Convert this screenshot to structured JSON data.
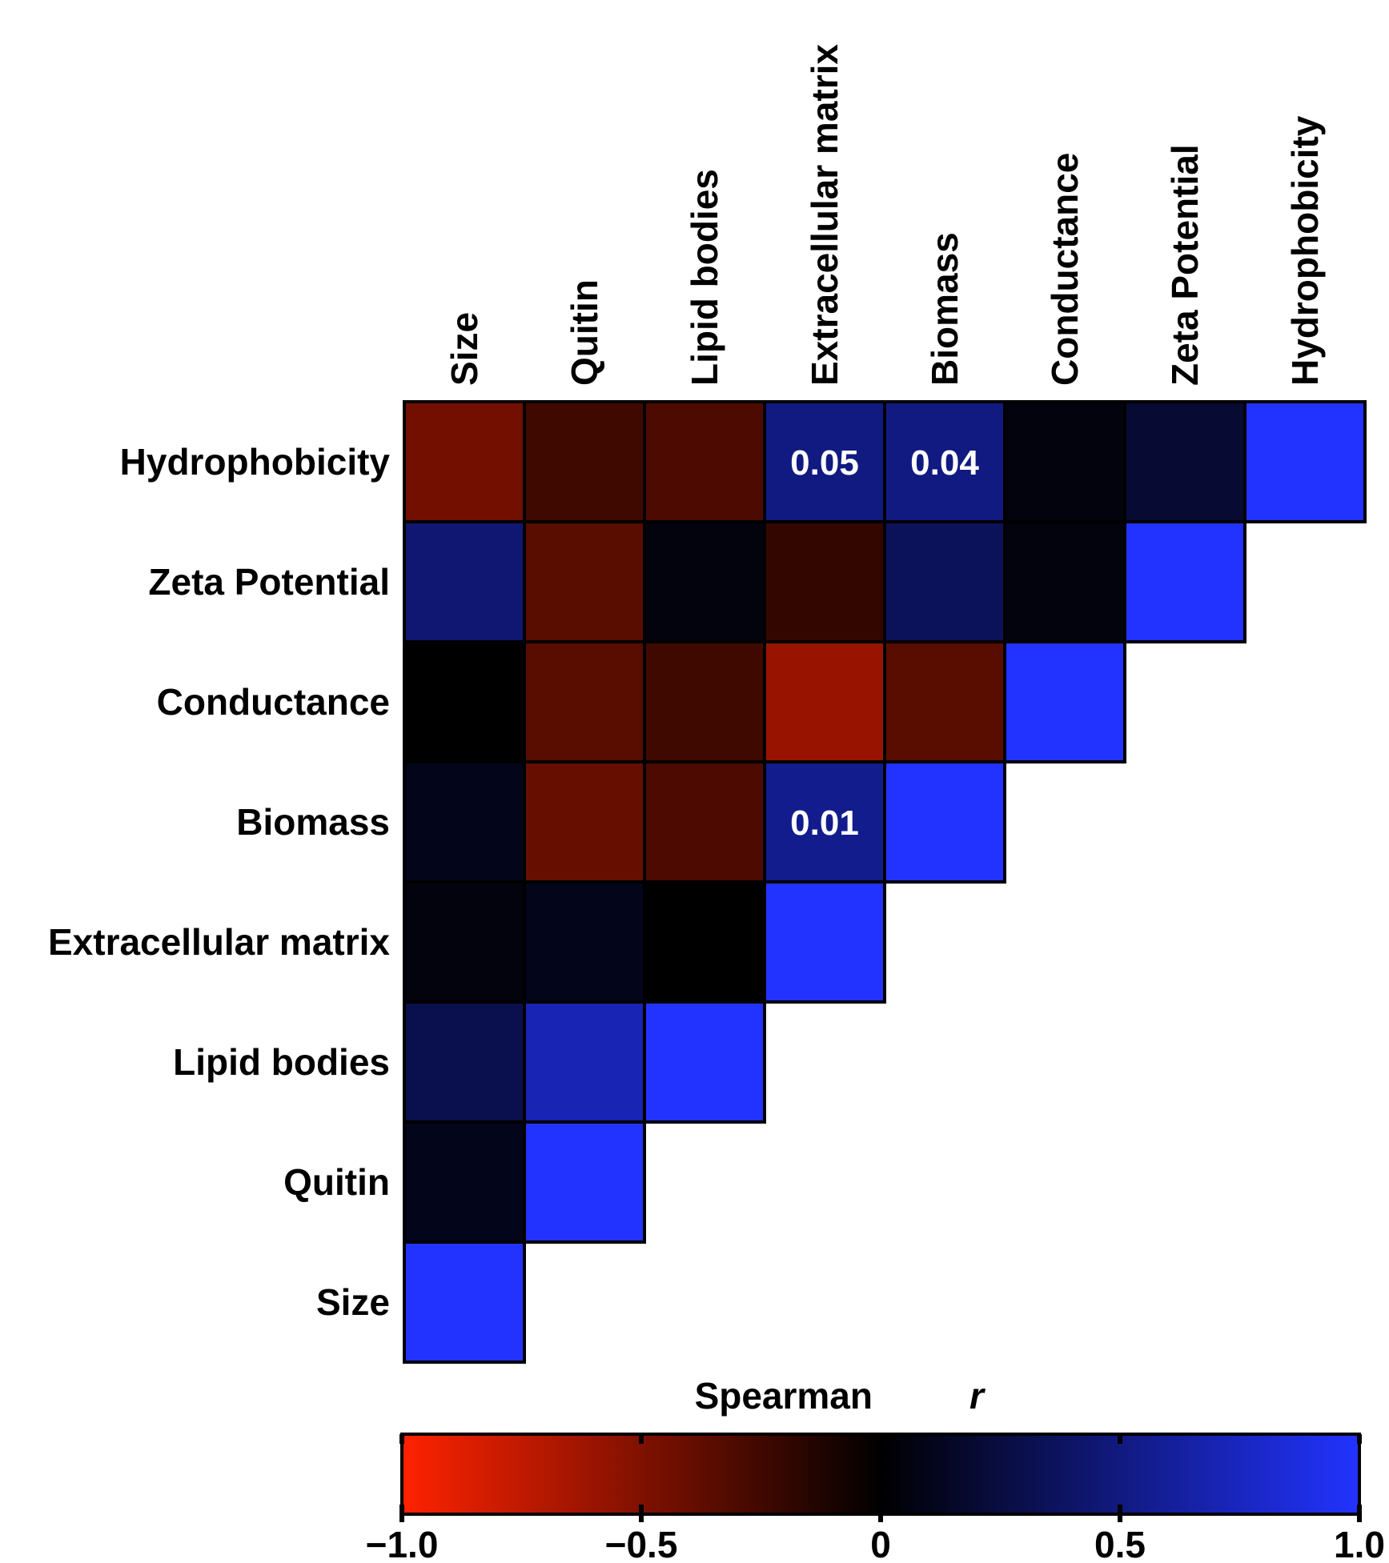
{
  "chart_data": {
    "type": "heatmap",
    "variables": [
      "Size",
      "Quitin",
      "Lipid bodies",
      "Extracellular matrix",
      "Biomass",
      "Conductance",
      "Zeta Potential",
      "Hydrophobicity"
    ],
    "cells": [
      {
        "row": "Hydrophobicity",
        "col": "Size",
        "value": -0.45
      },
      {
        "row": "Hydrophobicity",
        "col": "Quitin",
        "value": -0.25
      },
      {
        "row": "Hydrophobicity",
        "col": "Lipid bodies",
        "value": -0.3
      },
      {
        "row": "Hydrophobicity",
        "col": "Extracellular matrix",
        "value": 0.5,
        "label": "0.05"
      },
      {
        "row": "Hydrophobicity",
        "col": "Biomass",
        "value": 0.5,
        "label": "0.04"
      },
      {
        "row": "Hydrophobicity",
        "col": "Conductance",
        "value": 0.05
      },
      {
        "row": "Hydrophobicity",
        "col": "Zeta Potential",
        "value": 0.2
      },
      {
        "row": "Hydrophobicity",
        "col": "Hydrophobicity",
        "value": 1.0
      },
      {
        "row": "Zeta Potential",
        "col": "Size",
        "value": 0.45
      },
      {
        "row": "Zeta Potential",
        "col": "Quitin",
        "value": -0.35
      },
      {
        "row": "Zeta Potential",
        "col": "Lipid bodies",
        "value": 0.05
      },
      {
        "row": "Zeta Potential",
        "col": "Extracellular matrix",
        "value": -0.2
      },
      {
        "row": "Zeta Potential",
        "col": "Biomass",
        "value": 0.35
      },
      {
        "row": "Zeta Potential",
        "col": "Conductance",
        "value": 0.05
      },
      {
        "row": "Zeta Potential",
        "col": "Zeta Potential",
        "value": 1.0
      },
      {
        "row": "Conductance",
        "col": "Size",
        "value": 0.0
      },
      {
        "row": "Conductance",
        "col": "Quitin",
        "value": -0.35
      },
      {
        "row": "Conductance",
        "col": "Lipid bodies",
        "value": -0.25
      },
      {
        "row": "Conductance",
        "col": "Extracellular matrix",
        "value": -0.6
      },
      {
        "row": "Conductance",
        "col": "Biomass",
        "value": -0.35
      },
      {
        "row": "Conductance",
        "col": "Conductance",
        "value": 1.0
      },
      {
        "row": "Biomass",
        "col": "Size",
        "value": 0.1
      },
      {
        "row": "Biomass",
        "col": "Quitin",
        "value": -0.4
      },
      {
        "row": "Biomass",
        "col": "Lipid bodies",
        "value": -0.3
      },
      {
        "row": "Biomass",
        "col": "Extracellular matrix",
        "value": 0.55,
        "label": "0.01"
      },
      {
        "row": "Biomass",
        "col": "Biomass",
        "value": 1.0
      },
      {
        "row": "Extracellular matrix",
        "col": "Size",
        "value": 0.05
      },
      {
        "row": "Extracellular matrix",
        "col": "Quitin",
        "value": 0.1
      },
      {
        "row": "Extracellular matrix",
        "col": "Lipid bodies",
        "value": 0.0
      },
      {
        "row": "Extracellular matrix",
        "col": "Extracellular matrix",
        "value": 1.0
      },
      {
        "row": "Lipid bodies",
        "col": "Size",
        "value": 0.3
      },
      {
        "row": "Lipid bodies",
        "col": "Quitin",
        "value": 0.7
      },
      {
        "row": "Lipid bodies",
        "col": "Lipid bodies",
        "value": 1.0
      },
      {
        "row": "Quitin",
        "col": "Size",
        "value": 0.1
      },
      {
        "row": "Quitin",
        "col": "Quitin",
        "value": 1.0
      },
      {
        "row": "Size",
        "col": "Size",
        "value": 1.0
      }
    ],
    "colorbar": {
      "title": "Spearman",
      "title_symbol": "r",
      "range": [
        -1.0,
        1.0
      ],
      "ticks": [
        -1.0,
        -0.5,
        0,
        0.5,
        1.0
      ],
      "tick_labels": [
        "−1.0",
        "−0.5",
        "0",
        "0.5",
        "1.0"
      ],
      "colors": {
        "negative": "#ff2200",
        "zero": "#000000",
        "positive": "#2233ff"
      }
    }
  }
}
